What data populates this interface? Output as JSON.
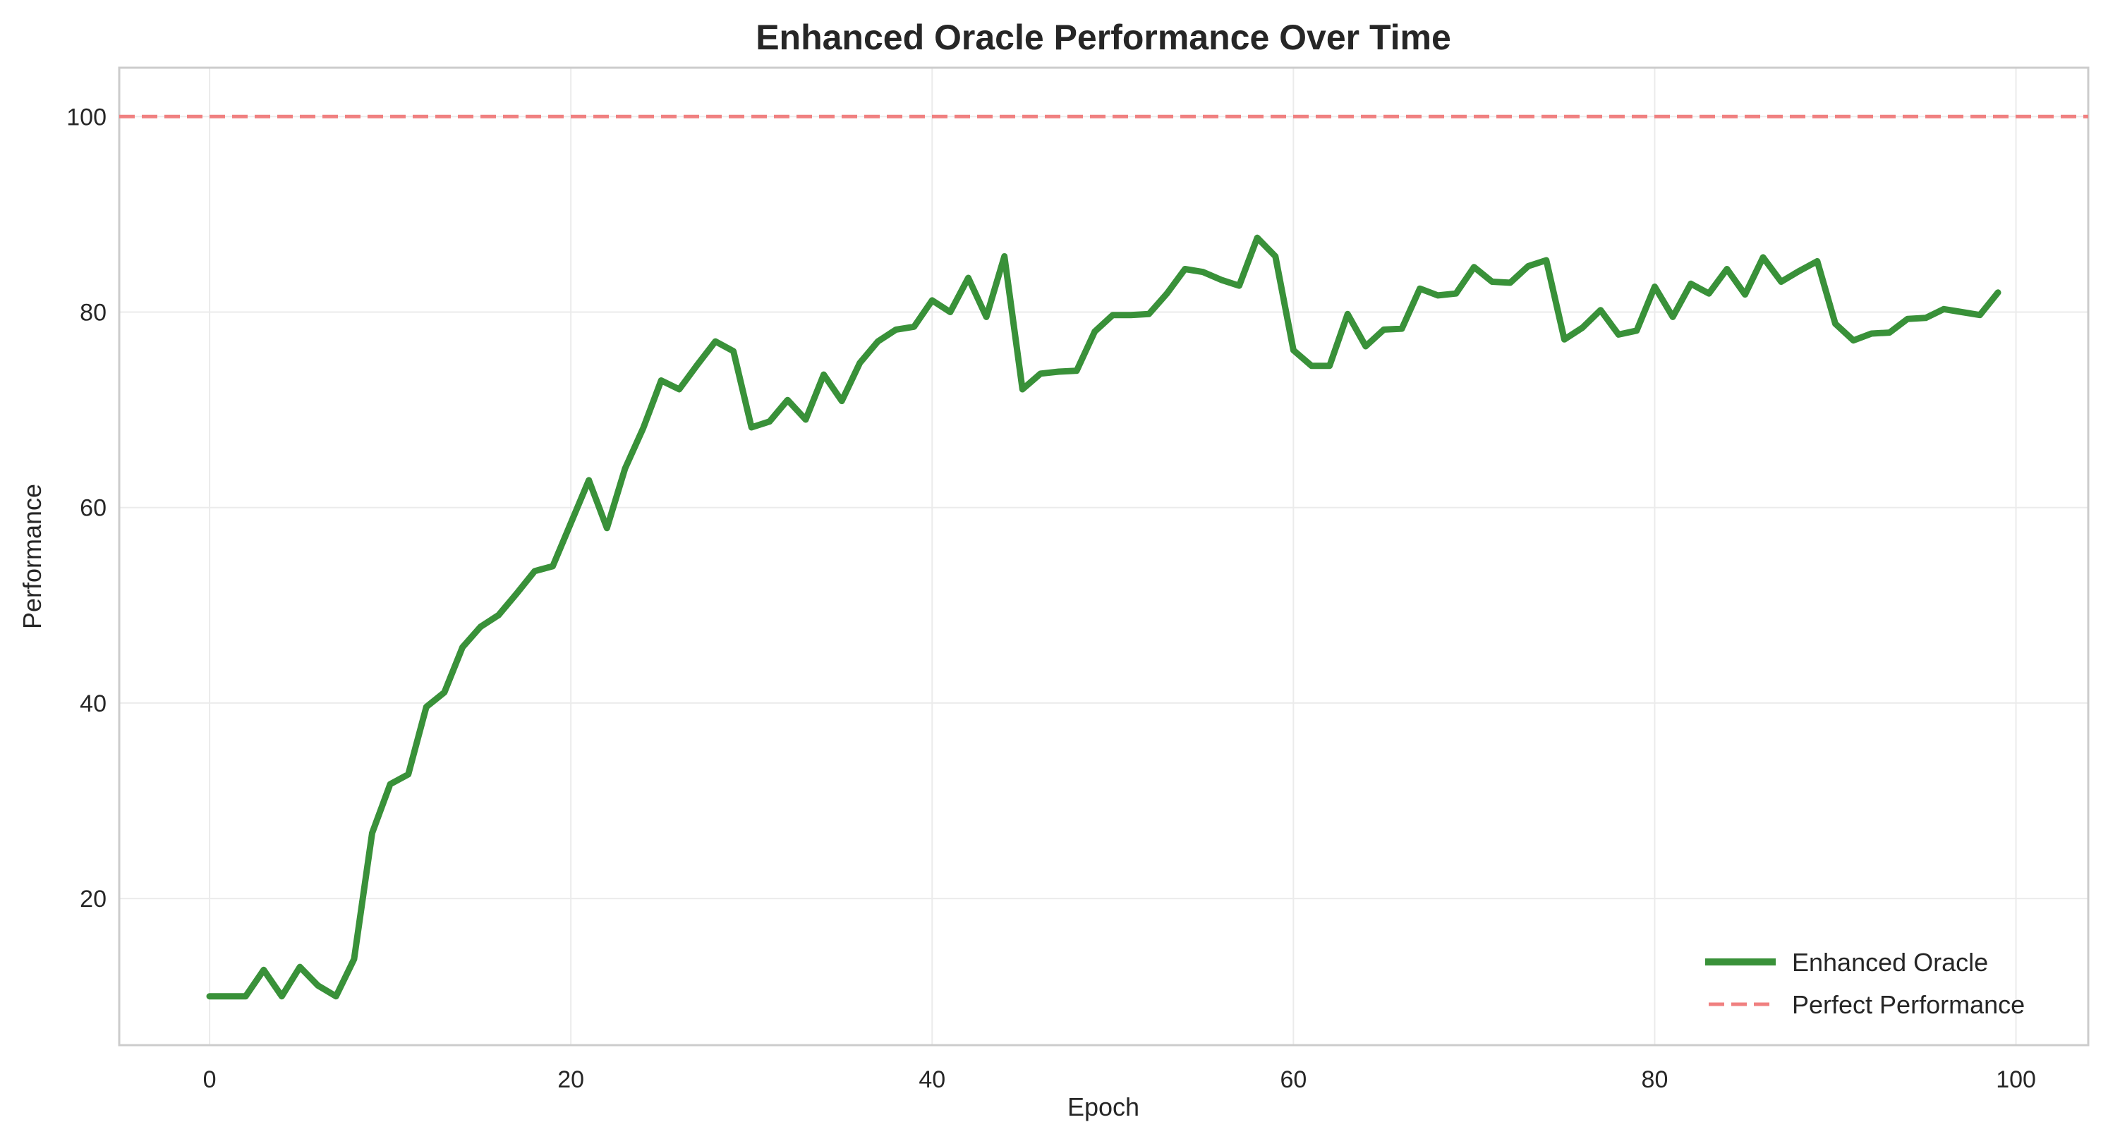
{
  "chart_data": {
    "type": "line",
    "title": "Enhanced Oracle Performance Over Time",
    "xlabel": "Epoch",
    "ylabel": "Performance",
    "xlim": [
      -5,
      104
    ],
    "ylim": [
      5,
      105
    ],
    "xticks": [
      0,
      20,
      40,
      60,
      80,
      100
    ],
    "yticks": [
      20,
      40,
      60,
      80,
      100
    ],
    "grid": true,
    "legend_position": "bottom-right",
    "series": [
      {
        "name": "Enhanced Oracle",
        "color": "#2e8b2e",
        "style": "solid",
        "x": [
          0,
          1,
          2,
          3,
          4,
          5,
          6,
          7,
          8,
          9,
          10,
          11,
          12,
          13,
          14,
          15,
          16,
          17,
          18,
          19,
          20,
          21,
          22,
          23,
          24,
          25,
          26,
          27,
          28,
          29,
          30,
          31,
          32,
          33,
          34,
          35,
          36,
          37,
          38,
          39,
          40,
          41,
          42,
          43,
          44,
          45,
          46,
          47,
          48,
          49,
          50,
          51,
          52,
          53,
          54,
          55,
          56,
          57,
          58,
          59,
          60,
          61,
          62,
          63,
          64,
          65,
          66,
          67,
          68,
          69,
          70,
          71,
          72,
          73,
          74,
          75,
          76,
          77,
          78,
          79,
          80,
          81,
          82,
          83,
          84,
          85,
          86,
          87,
          88,
          89,
          90,
          91,
          92,
          93,
          94,
          95,
          96,
          97,
          98,
          99
        ],
        "y": [
          10,
          10,
          10,
          12.7,
          10,
          13,
          11.1,
          10,
          13.8,
          26.7,
          31.7,
          32.7,
          39.6,
          41.1,
          45.7,
          47.8,
          49,
          51.2,
          53.5,
          54,
          58.4,
          62.8,
          57.9,
          64,
          68.1,
          73,
          72.1,
          74.6,
          77,
          76,
          68.2,
          68.8,
          71,
          69,
          73.6,
          70.9,
          74.8,
          77,
          78.2,
          78.5,
          81.2,
          80,
          83.5,
          79.5,
          85.7,
          72.1,
          73.7,
          73.9,
          74,
          78,
          79.7,
          79.7,
          79.8,
          81.9,
          84.4,
          84.1,
          83.3,
          82.7,
          87.6,
          85.7,
          76.1,
          74.5,
          74.5,
          79.8,
          76.5,
          78.2,
          78.3,
          82.4,
          81.7,
          81.9,
          84.6,
          83.1,
          83,
          84.7,
          85.3,
          77.2,
          78.4,
          80.2,
          77.7,
          78.1,
          82.6,
          79.5,
          82.9,
          81.9,
          84.4,
          81.8,
          85.6,
          83.1,
          84.2,
          85.2,
          78.8,
          77.1,
          77.8,
          77.9,
          79.3,
          79.4,
          80.3,
          80,
          79.7,
          82
        ]
      },
      {
        "name": "Perfect Performance",
        "color": "#f08080",
        "style": "dashed",
        "y_constant": 100
      }
    ]
  }
}
